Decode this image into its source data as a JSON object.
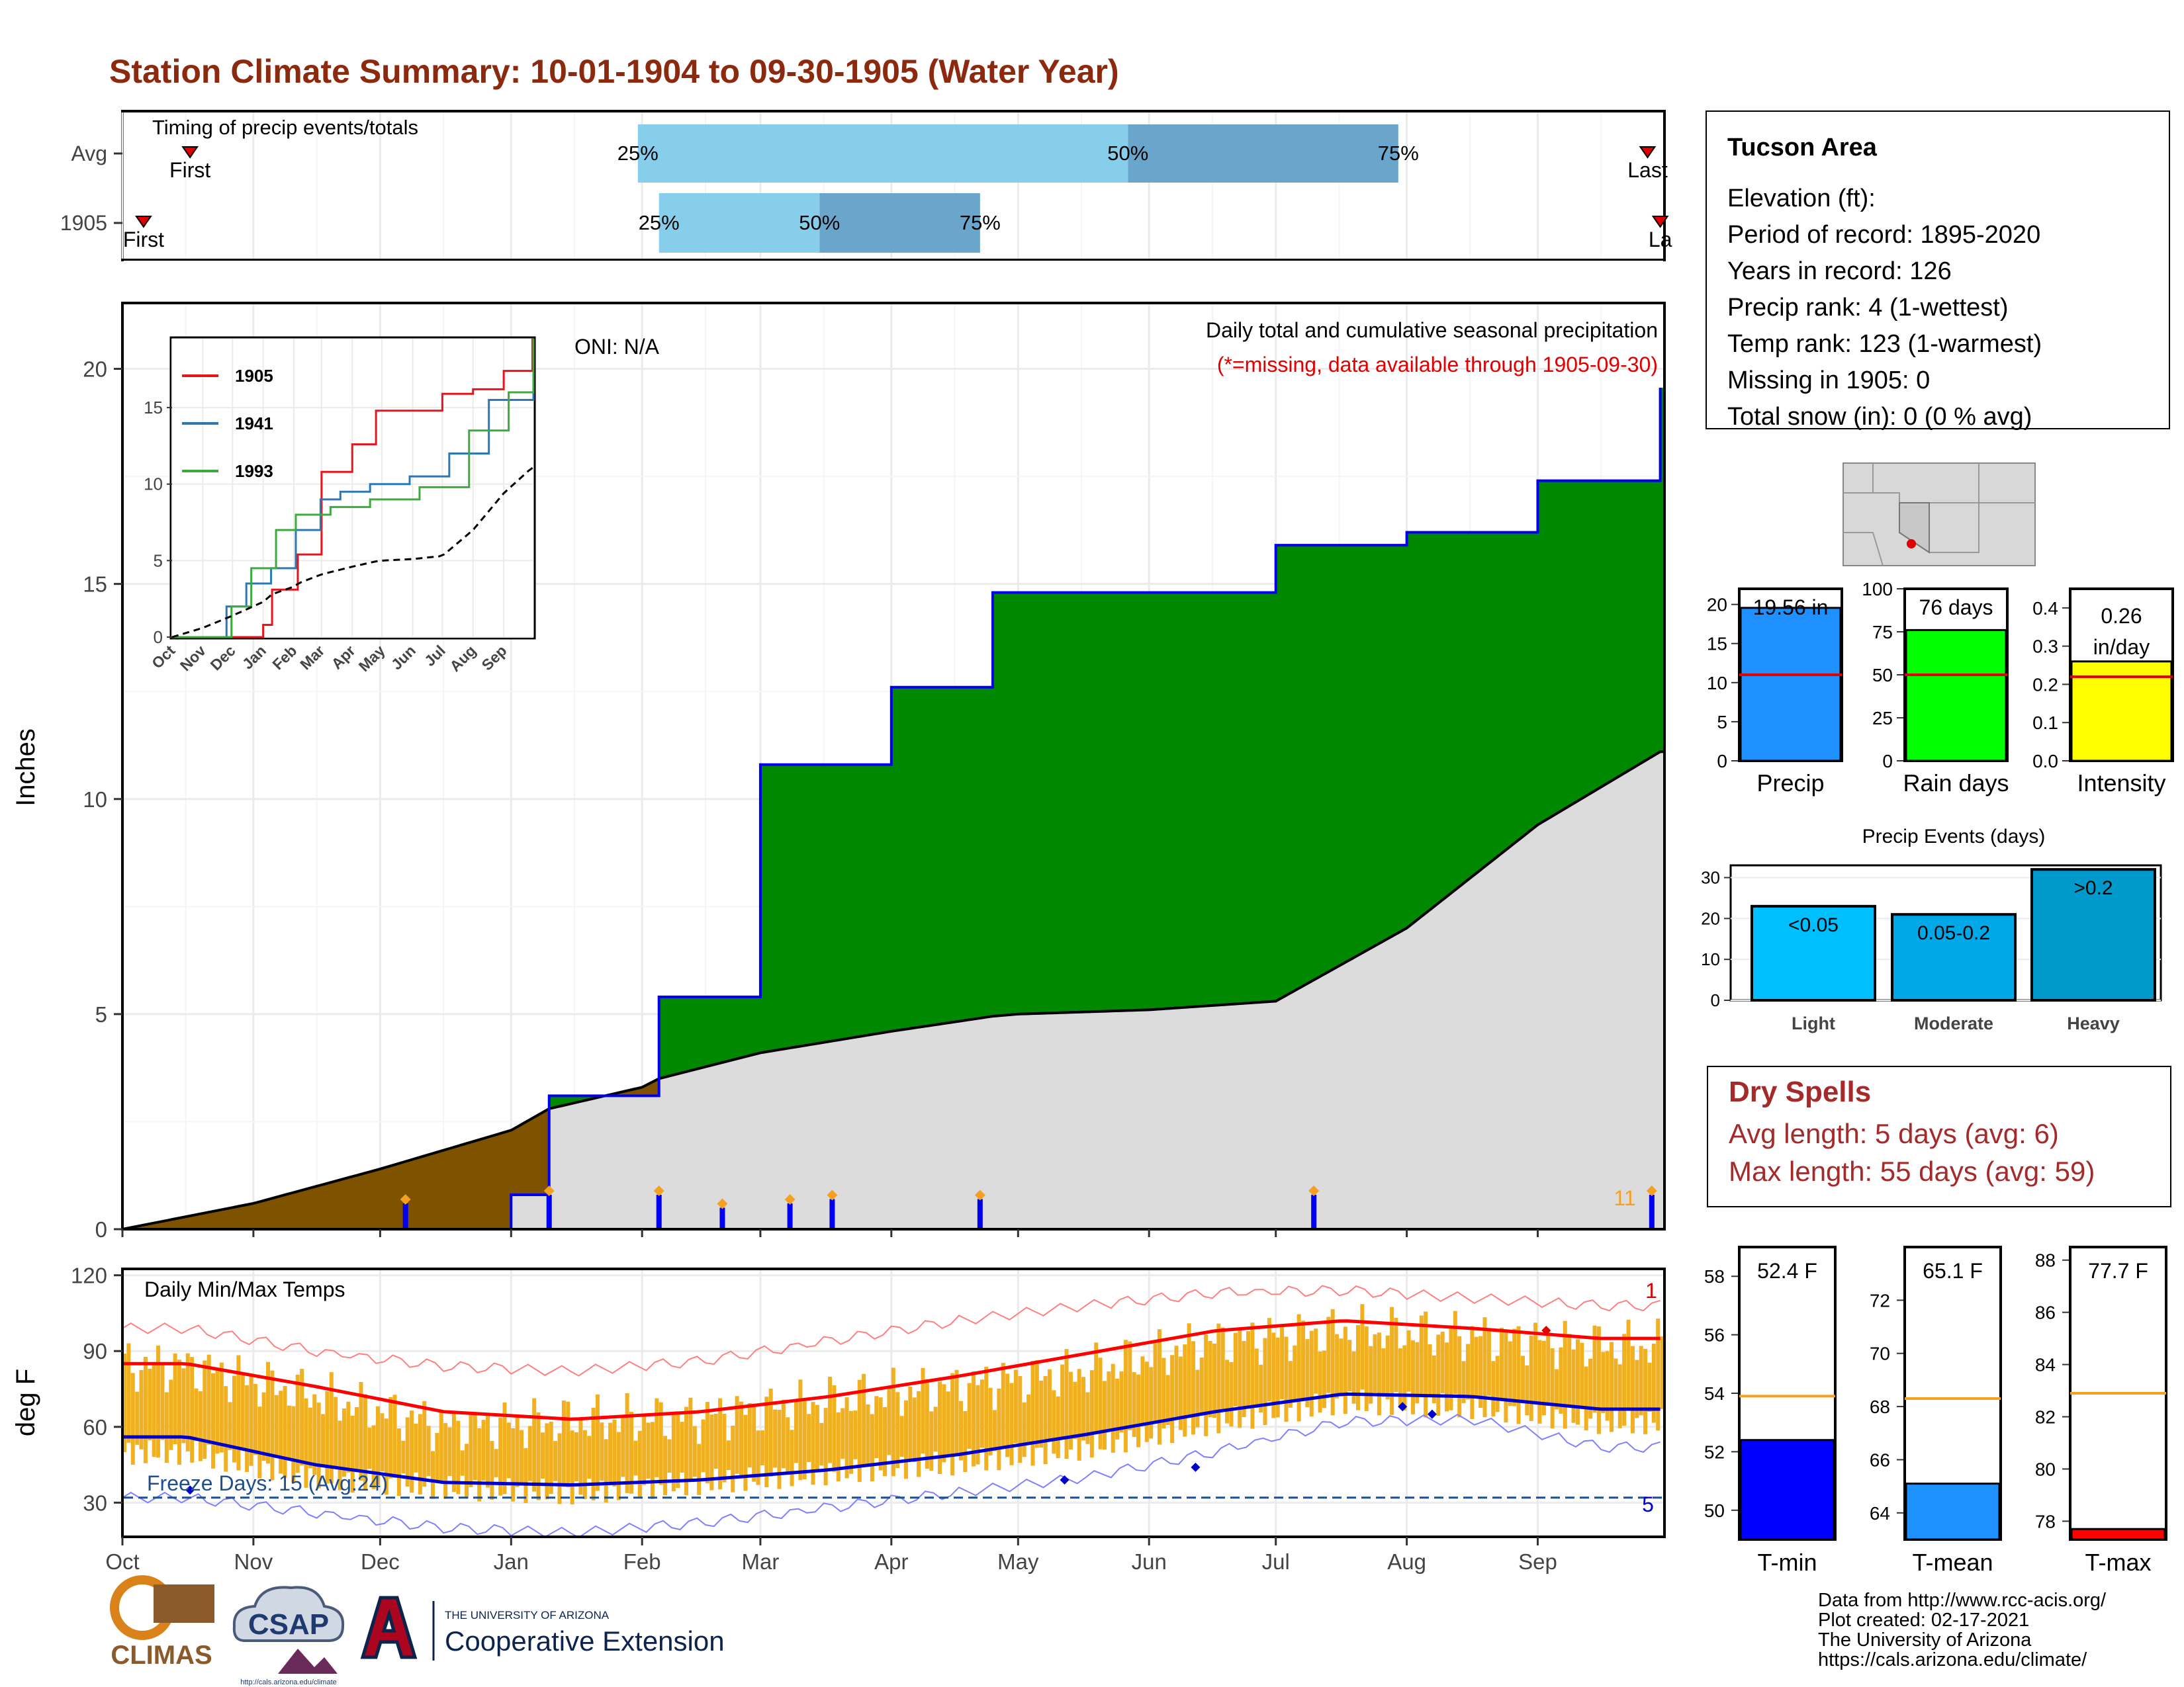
{
  "title": "Station Climate Summary: 10-01-1904 to 09-30-1905 (Water Year)",
  "colors": {
    "title": "#8b2a0f",
    "precip_green": "#008800",
    "deficit_brown": "#7f5200",
    "normal_gray": "#dcdcdc",
    "quartile_light": "#87ceeb",
    "quartile_dark": "#6aa6cc",
    "daily_bar": "#0000ee",
    "temp_bar": "#f0b020",
    "avg_max": "#ff0000",
    "avg_min": "#0000cc",
    "dry_spell": "#a52a2a",
    "freeze_line": "#1f4e8c"
  },
  "timing_panel": {
    "label": "Timing of precip events/totals",
    "rows": [
      {
        "name": "Avg",
        "first_label": "First",
        "last_label": "Last",
        "first_date": "1904-10-17",
        "last_date": "1905-09-27",
        "q25_date": "1905-01-31",
        "q50_date": "1905-05-27",
        "q75_date": "1905-07-30"
      },
      {
        "name": "1905",
        "first_label": "First",
        "last_label": "La",
        "first_date": "1904-10-06",
        "last_date": "1905-09-30",
        "q25_date": "1905-02-05",
        "q50_date": "1905-03-15",
        "q75_date": "1905-04-22"
      }
    ],
    "q_labels": [
      "25%",
      "50%",
      "75%"
    ]
  },
  "precip_panel": {
    "ylabel": "Inches",
    "yticks": [
      "0",
      "5",
      "10",
      "15",
      "20"
    ],
    "oni": "ONI: N/A",
    "title": "Daily total and cumulative seasonal precipitation",
    "subtitle": "(*=missing, data available through 1905-09-30)",
    "count_label": "11"
  },
  "inset": {
    "legend": [
      "1905",
      "1941",
      "1993"
    ],
    "colors": [
      "#e8141c",
      "#2a78b8",
      "#3caa3c"
    ],
    "yticks": [
      "0",
      "5",
      "10",
      "15"
    ],
    "xticks": [
      "Oct",
      "Nov",
      "Dec",
      "Jan",
      "Feb",
      "Mar",
      "Apr",
      "May",
      "Jun",
      "Jul",
      "Aug",
      "Sep"
    ]
  },
  "temp_panel": {
    "label": "Daily Min/Max Temps",
    "ylabel": "deg F",
    "yticks": [
      "30",
      "60",
      "90",
      "120"
    ],
    "freeze_label": "Freeze Days: 15 (Avg:24)",
    "record_max_count": "1",
    "record_min_count": "5"
  },
  "x_months": [
    "Oct",
    "Nov",
    "Dec",
    "Jan",
    "Feb",
    "Mar",
    "Apr",
    "May",
    "Jun",
    "Jul",
    "Aug",
    "Sep"
  ],
  "station": {
    "name": "Tucson Area",
    "lines": [
      "Elevation (ft):",
      "Period of record: 1895-2020",
      "Years in record: 126",
      "Precip rank: 4 (1-wettest)",
      "Temp rank: 123 (1-warmest)",
      "Missing in 1905: 0",
      "Total snow (in): 0 (0 % avg)"
    ]
  },
  "summary_bars": [
    {
      "label": "Precip",
      "value": 19.56,
      "avg": 11.0,
      "text": "19.56 in",
      "yticks": [
        "0",
        "5",
        "10",
        "15",
        "20"
      ],
      "ymax": 22,
      "color": "#1e90ff"
    },
    {
      "label": "Rain days",
      "value": 76,
      "avg": 50,
      "text": "76 days",
      "yticks": [
        "0",
        "25",
        "50",
        "75",
        "100"
      ],
      "ymax": 100,
      "color": "#00ff00"
    },
    {
      "label": "Intensity",
      "value": 0.26,
      "avg": 0.22,
      "text": "0.26",
      "text2": "in/day",
      "yticks": [
        "0.0",
        "0.1",
        "0.2",
        "0.3",
        "0.4"
      ],
      "ymax": 0.45,
      "color": "#ffff00"
    }
  ],
  "events": {
    "title": "Precip Events (days)",
    "yticks": [
      "0",
      "10",
      "20",
      "30"
    ],
    "bars": [
      {
        "label": "Light",
        "value": 23,
        "text": "<0.05",
        "color": "#00bfff"
      },
      {
        "label": "Moderate",
        "value": 21,
        "text": "0.05-0.2",
        "color": "#00a8e8"
      },
      {
        "label": "Heavy",
        "value": 32,
        "text": ">0.2",
        "color": "#0099cc"
      }
    ]
  },
  "dry_spells": {
    "title": "Dry Spells",
    "avg": "Avg length: 5 days (avg: 6)",
    "max": "Max length: 55 days (avg: 59)"
  },
  "temp_bars": [
    {
      "label": "T-min",
      "value": 52.4,
      "avg": 53.9,
      "text": "52.4 F",
      "yticks": [
        "50",
        "52",
        "54",
        "56",
        "58"
      ],
      "ylim": [
        49,
        59
      ],
      "color": "#0000ff"
    },
    {
      "label": "T-mean",
      "value": 65.1,
      "avg": 68.3,
      "text": "65.1 F",
      "yticks": [
        "64",
        "66",
        "68",
        "70",
        "72"
      ],
      "ylim": [
        63,
        74
      ],
      "color": "#1e90ff"
    },
    {
      "label": "T-max",
      "value": 77.7,
      "avg": 82.9,
      "text": "77.7 F",
      "yticks": [
        "78",
        "80",
        "82",
        "84",
        "86",
        "88"
      ],
      "ylim": [
        77.3,
        88.5
      ],
      "color": "#ff0000"
    }
  ],
  "credits": [
    "Data from http://www.rcc-acis.org/",
    "Plot created: 02-17-2021",
    "The University of Arizona",
    "https://cals.arizona.edu/climate/"
  ],
  "logos": {
    "climas": "CLIMAS",
    "csap": "CSAP",
    "csap_url": "http://cals.arizona.edu/climate",
    "ua_small": "THE UNIVERSITY OF ARIZONA",
    "ua_big": "Cooperative Extension"
  },
  "chart_data": {
    "type": "area",
    "title": "Daily total and cumulative seasonal precipitation",
    "ylabel": "Inches",
    "ylim": [
      0,
      21.5
    ],
    "x": [
      "1904-10-01",
      "1904-11-01",
      "1904-12-01",
      "1905-01-01",
      "1905-01-10",
      "1905-02-01",
      "1905-02-05",
      "1905-03-01",
      "1905-04-01",
      "1905-04-25",
      "1905-05-01",
      "1905-06-01",
      "1905-07-01",
      "1905-08-01",
      "1905-09-01",
      "1905-09-30"
    ],
    "series": [
      {
        "name": "1905",
        "values": [
          0,
          0,
          0,
          0.8,
          3.1,
          3.1,
          5.4,
          10.8,
          12.6,
          14.8,
          14.8,
          14.8,
          15.9,
          16.2,
          17.4,
          19.56
        ]
      }
    ],
    "normal": [
      0,
      0.6,
      1.4,
      2.3,
      2.8,
      3.3,
      3.5,
      4.1,
      4.6,
      4.95,
      5.0,
      5.1,
      5.3,
      7.0,
      9.4,
      11.1
    ],
    "daily_events": [
      {
        "date": "1904-12-07",
        "value": 0.6
      },
      {
        "date": "1905-01-10",
        "value": 0.8
      },
      {
        "date": "1905-02-05",
        "value": 0.8
      },
      {
        "date": "1905-02-20",
        "value": 0.5
      },
      {
        "date": "1905-03-08",
        "value": 0.6
      },
      {
        "date": "1905-03-18",
        "value": 0.7
      },
      {
        "date": "1905-04-22",
        "value": 0.7
      },
      {
        "date": "1905-07-10",
        "value": 0.8
      },
      {
        "date": "1905-09-28",
        "value": 0.8
      }
    ],
    "temperature": {
      "type": "line",
      "title": "Daily Min/Max Temps",
      "ylabel": "deg F",
      "ylim": [
        17,
        122
      ],
      "x": [
        "Oct",
        "Nov",
        "Dec",
        "Jan",
        "Feb",
        "Mar",
        "Apr",
        "May",
        "Jun",
        "Jul",
        "Aug",
        "Sep"
      ],
      "series": [
        {
          "name": "avg max",
          "values": [
            85,
            76,
            66,
            63,
            66,
            72,
            80,
            89,
            98,
            102,
            99,
            95
          ]
        },
        {
          "name": "avg min",
          "values": [
            56,
            45,
            38,
            37,
            39,
            43,
            49,
            57,
            66,
            73,
            72,
            67
          ]
        },
        {
          "name": "record max",
          "values": [
            99,
            90,
            84,
            82,
            86,
            94,
            102,
            108,
            113,
            114,
            111,
            108
          ]
        },
        {
          "name": "record min",
          "values": [
            32,
            26,
            20,
            18,
            22,
            28,
            34,
            40,
            50,
            62,
            63,
            52
          ]
        },
        {
          "name": "daily max",
          "values": [
            84,
            72,
            60,
            62,
            64,
            70,
            76,
            82,
            94,
            98,
            96,
            92
          ]
        },
        {
          "name": "daily min",
          "values": [
            50,
            40,
            36,
            34,
            38,
            42,
            46,
            52,
            62,
            70,
            68,
            62
          ]
        }
      ],
      "freeze_line": 32
    }
  }
}
